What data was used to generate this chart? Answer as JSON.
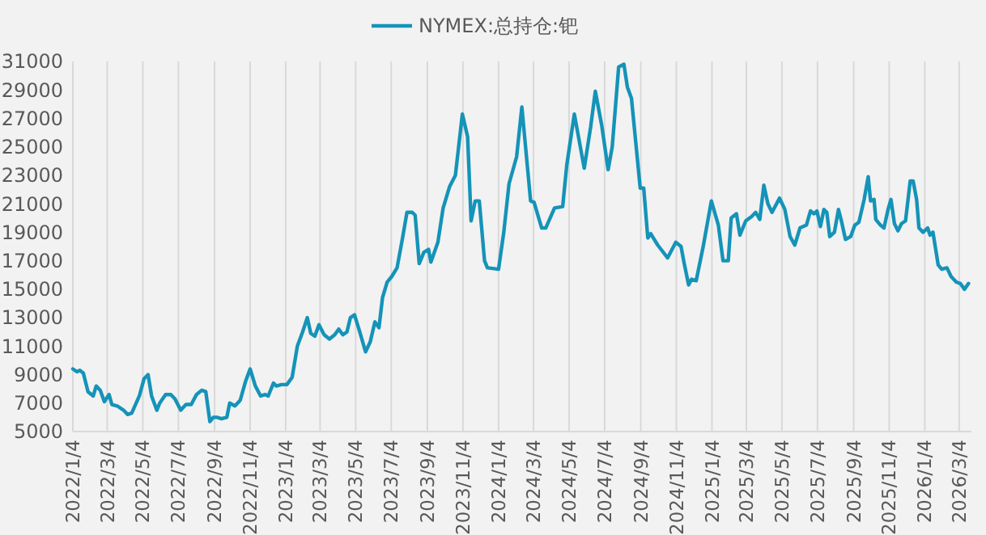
{
  "chart_data": {
    "type": "line",
    "legend": "top",
    "grid": "x",
    "marker": "none",
    "line_style": "solid",
    "ylim": [
      5000,
      31000
    ],
    "yticks": [
      5000,
      7000,
      9000,
      11000,
      13000,
      15000,
      17000,
      19000,
      21000,
      23000,
      25000,
      27000,
      29000,
      31000
    ],
    "xlim": [
      "2022-01-04",
      "2026-03-25"
    ],
    "xticks": [
      {
        "value": "2022-01-04",
        "label": "2022/1/4"
      },
      {
        "value": "2022-03-04",
        "label": "2022/3/4"
      },
      {
        "value": "2022-05-04",
        "label": "2022/5/4"
      },
      {
        "value": "2022-07-04",
        "label": "2022/7/4"
      },
      {
        "value": "2022-09-04",
        "label": "2022/9/4"
      },
      {
        "value": "2022-11-04",
        "label": "2022/11/4"
      },
      {
        "value": "2023-01-04",
        "label": "2023/1/4"
      },
      {
        "value": "2023-03-04",
        "label": "2023/3/4"
      },
      {
        "value": "2023-05-04",
        "label": "2023/5/4"
      },
      {
        "value": "2023-07-04",
        "label": "2023/7/4"
      },
      {
        "value": "2023-09-04",
        "label": "2023/9/4"
      },
      {
        "value": "2023-11-04",
        "label": "2023/11/4"
      },
      {
        "value": "2024-01-04",
        "label": "2024/1/4"
      },
      {
        "value": "2024-03-04",
        "label": "2024/3/4"
      },
      {
        "value": "2024-05-04",
        "label": "2024/5/4"
      },
      {
        "value": "2024-07-04",
        "label": "2024/7/4"
      },
      {
        "value": "2024-09-04",
        "label": "2024/9/4"
      },
      {
        "value": "2024-11-04",
        "label": "2024/11/4"
      },
      {
        "value": "2025-01-04",
        "label": "2025/1/4"
      },
      {
        "value": "2025-03-04",
        "label": "2025/3/4"
      },
      {
        "value": "2025-05-04",
        "label": "2025/5/4"
      },
      {
        "value": "2025-07-04",
        "label": "2025/7/4"
      },
      {
        "value": "2025-09-04",
        "label": "2025/9/4"
      },
      {
        "value": "2025-11-04",
        "label": "2025/11/4"
      },
      {
        "value": "2026-01-04",
        "label": "2026/1/4"
      },
      {
        "value": "2026-03-04",
        "label": "2026/3/4"
      }
    ],
    "x": [
      "2022-01-04",
      "2022-01-11",
      "2022-01-16",
      "2022-01-22",
      "2022-01-30",
      "2022-02-08",
      "2022-02-13",
      "2022-02-20",
      "2022-02-27",
      "2022-03-07",
      "2022-03-12",
      "2022-03-21",
      "2022-04-01",
      "2022-04-08",
      "2022-04-15",
      "2022-04-28",
      "2022-05-06",
      "2022-05-13",
      "2022-05-19",
      "2022-05-28",
      "2022-06-02",
      "2022-06-12",
      "2022-06-21",
      "2022-06-28",
      "2022-07-08",
      "2022-07-17",
      "2022-07-26",
      "2022-08-04",
      "2022-08-13",
      "2022-08-20",
      "2022-08-27",
      "2022-09-02",
      "2022-09-08",
      "2022-09-16",
      "2022-09-25",
      "2022-09-30",
      "2022-10-09",
      "2022-10-18",
      "2022-10-27",
      "2022-11-04",
      "2022-11-13",
      "2022-11-22",
      "2022-11-30",
      "2022-12-05",
      "2022-12-14",
      "2022-12-19",
      "2022-12-28",
      "2023-01-06",
      "2023-01-15",
      "2023-01-24",
      "2023-02-02",
      "2023-02-10",
      "2023-02-16",
      "2023-02-23",
      "2023-03-02",
      "2023-03-11",
      "2023-03-20",
      "2023-03-29",
      "2023-04-05",
      "2023-04-12",
      "2023-04-19",
      "2023-04-25",
      "2023-05-02",
      "2023-05-11",
      "2023-05-21",
      "2023-05-29",
      "2023-06-06",
      "2023-06-13",
      "2023-06-19",
      "2023-06-27",
      "2023-07-05",
      "2023-07-14",
      "2023-07-23",
      "2023-07-31",
      "2023-08-09",
      "2023-08-14",
      "2023-08-21",
      "2023-08-29",
      "2023-09-06",
      "2023-09-10",
      "2023-09-22",
      "2023-10-01",
      "2023-10-12",
      "2023-10-22",
      "2023-11-03",
      "2023-11-12",
      "2023-11-18",
      "2023-11-25",
      "2023-12-02",
      "2023-12-11",
      "2023-12-16",
      "2024-01-04",
      "2024-01-13",
      "2024-01-22",
      "2024-02-04",
      "2024-02-13",
      "2024-02-28",
      "2024-03-05",
      "2024-03-18",
      "2024-03-25",
      "2024-04-09",
      "2024-04-23",
      "2024-04-30",
      "2024-05-13",
      "2024-05-30",
      "2024-06-10",
      "2024-06-18",
      "2024-06-29",
      "2024-07-10",
      "2024-07-17",
      "2024-07-28",
      "2024-08-06",
      "2024-08-12",
      "2024-08-19",
      "2024-09-03",
      "2024-09-09",
      "2024-09-16",
      "2024-09-21",
      "2024-10-03",
      "2024-10-20",
      "2024-11-03",
      "2024-11-12",
      "2024-11-17",
      "2024-11-25",
      "2024-11-30",
      "2024-12-08",
      "2024-12-20",
      "2025-01-03",
      "2025-01-15",
      "2025-01-23",
      "2025-02-01",
      "2025-02-06",
      "2025-02-15",
      "2025-02-21",
      "2025-03-03",
      "2025-03-13",
      "2025-03-20",
      "2025-03-27",
      "2025-04-03",
      "2025-04-10",
      "2025-04-17",
      "2025-04-30",
      "2025-05-09",
      "2025-05-18",
      "2025-05-26",
      "2025-06-04",
      "2025-06-15",
      "2025-06-22",
      "2025-06-28",
      "2025-07-03",
      "2025-07-09",
      "2025-07-15",
      "2025-07-20",
      "2025-07-25",
      "2025-08-02",
      "2025-08-09",
      "2025-08-14",
      "2025-08-21",
      "2025-08-30",
      "2025-09-06",
      "2025-09-13",
      "2025-09-22",
      "2025-09-29",
      "2025-10-03",
      "2025-10-09",
      "2025-10-12",
      "2025-10-20",
      "2025-10-26",
      "2025-11-02",
      "2025-11-07",
      "2025-11-13",
      "2025-11-19",
      "2025-11-25",
      "2025-12-02",
      "2025-12-10",
      "2025-12-15",
      "2025-12-21",
      "2025-12-25",
      "2026-01-01",
      "2026-01-09",
      "2026-01-13",
      "2026-01-18",
      "2026-01-27",
      "2026-02-02",
      "2026-02-11",
      "2026-02-18",
      "2026-02-27",
      "2026-03-06",
      "2026-03-13",
      "2026-03-20"
    ],
    "series": [
      {
        "name": "NYMEX:总持仓:钯",
        "color": "#1593b8",
        "values": [
          9400,
          9200,
          9300,
          9100,
          7800,
          7500,
          8200,
          7900,
          7100,
          7600,
          6900,
          6800,
          6500,
          6200,
          6300,
          7500,
          8700,
          9000,
          7500,
          6500,
          7000,
          7600,
          7600,
          7300,
          6500,
          6900,
          6900,
          7600,
          7900,
          7800,
          5700,
          6000,
          6000,
          5900,
          6000,
          7000,
          6800,
          7200,
          8500,
          9400,
          8200,
          7500,
          7600,
          7500,
          8400,
          8200,
          8300,
          8300,
          8800,
          11000,
          12000,
          13000,
          11900,
          11700,
          12500,
          11800,
          11500,
          11800,
          12200,
          11800,
          12000,
          13000,
          13200,
          12000,
          10600,
          11300,
          12700,
          12300,
          14400,
          15500,
          15900,
          16500,
          18500,
          20400,
          20400,
          20200,
          16800,
          17600,
          17800,
          16900,
          18300,
          20700,
          22200,
          23000,
          27300,
          25700,
          19800,
          21200,
          21200,
          17000,
          16500,
          16400,
          19000,
          22400,
          24300,
          27800,
          21200,
          21100,
          19300,
          19300,
          20700,
          20800,
          23700,
          27300,
          23500,
          26400,
          28900,
          26500,
          23400,
          25000,
          30600,
          30800,
          29200,
          28400,
          22100,
          22100,
          18600,
          18900,
          18100,
          17200,
          18300,
          18000,
          16900,
          15300,
          15700,
          15600,
          18000,
          21200,
          19500,
          17000,
          17000,
          20000,
          20300,
          18800,
          19800,
          20100,
          20400,
          19900,
          22300,
          21000,
          20400,
          21400,
          20600,
          18700,
          18100,
          19300,
          19500,
          20500,
          20300,
          20500,
          19400,
          20600,
          20400,
          18700,
          19000,
          20600,
          19800,
          18500,
          18700,
          19500,
          19700,
          21300,
          22900,
          21200,
          21300,
          19900,
          19500,
          19300,
          20600,
          21300,
          19600,
          19100,
          19600,
          19800,
          22600,
          22600,
          21300,
          19300,
          19000,
          19300,
          18800,
          19000,
          16700,
          16400,
          16500,
          15900,
          15500,
          15400,
          15000,
          15400
        ]
      }
    ]
  }
}
